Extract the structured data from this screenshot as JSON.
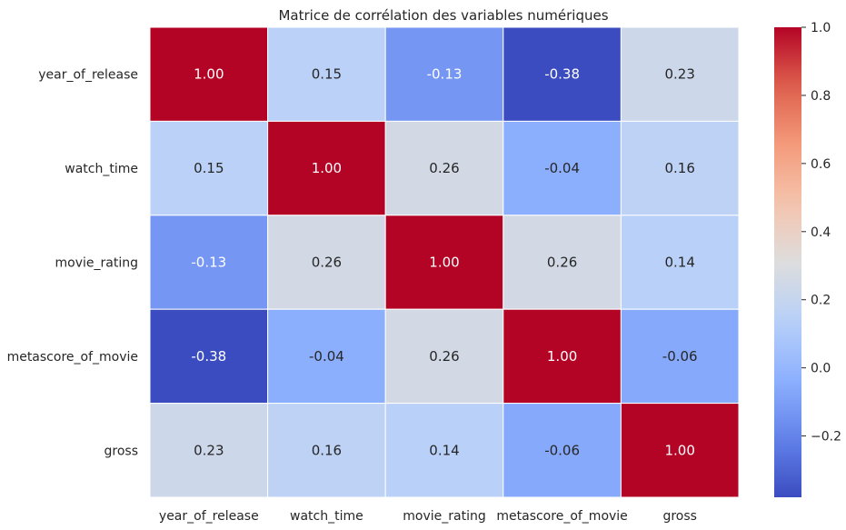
{
  "chart_data": {
    "type": "heatmap",
    "title": "Matrice de corrélation des variables numériques",
    "xlabel": "",
    "ylabel": "",
    "x_categories": [
      "year_of_release",
      "watch_time",
      "movie_rating",
      "metascore_of_movie",
      "gross"
    ],
    "y_categories": [
      "year_of_release",
      "watch_time",
      "movie_rating",
      "metascore_of_movie",
      "gross"
    ],
    "values": [
      [
        1.0,
        0.15,
        -0.13,
        -0.38,
        0.23
      ],
      [
        0.15,
        1.0,
        0.26,
        -0.04,
        0.16
      ],
      [
        -0.13,
        0.26,
        1.0,
        0.26,
        0.14
      ],
      [
        -0.38,
        -0.04,
        0.26,
        1.0,
        -0.06
      ],
      [
        0.23,
        0.16,
        0.14,
        -0.06,
        1.0
      ]
    ],
    "value_format": "0.00",
    "colormap": "coolwarm",
    "color_range": [
      -0.38,
      1.0
    ],
    "colorbar_ticks": [
      "1.0",
      "0.8",
      "0.6",
      "0.4",
      "0.2",
      "0.0",
      "−0.2"
    ],
    "colorbar_tick_values": [
      1.0,
      0.8,
      0.6,
      0.4,
      0.2,
      0.0,
      -0.2
    ],
    "grid": false,
    "cell_border_color": "#ffffff"
  }
}
